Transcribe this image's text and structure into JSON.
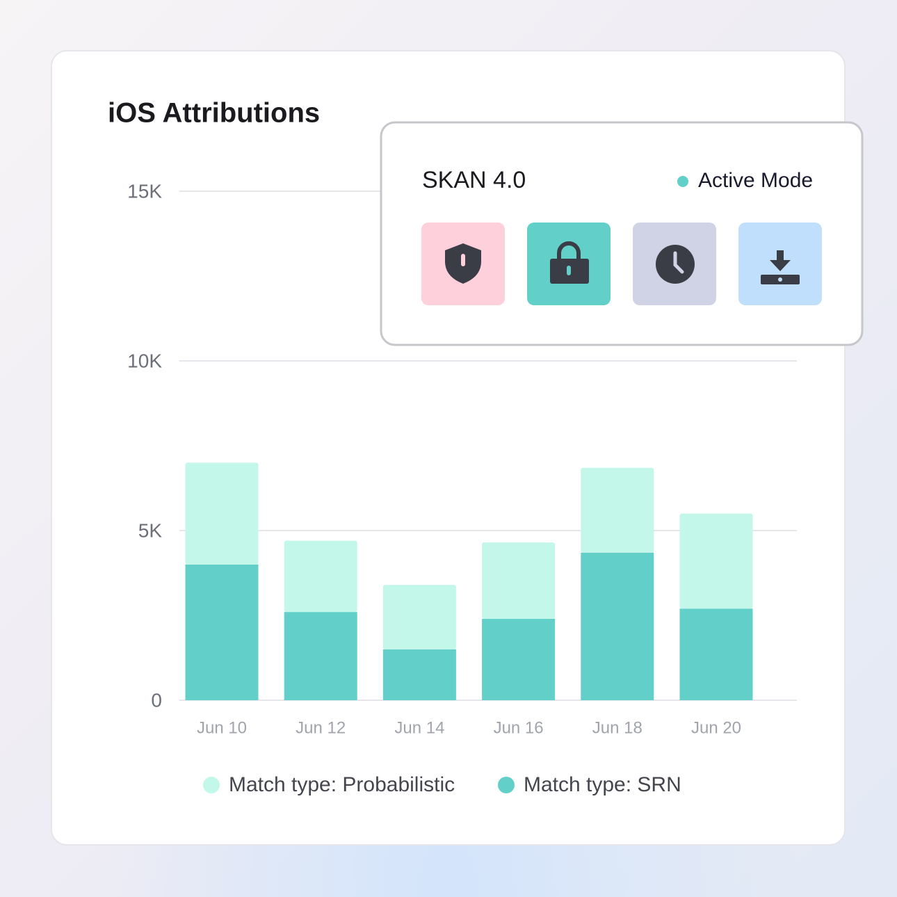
{
  "chart_data": {
    "type": "stacked_bar",
    "title": "iOS Attributions",
    "categories": [
      "Jun 10",
      "Jun 12",
      "Jun 14",
      "Jun 16",
      "Jun 18",
      "Jun 20"
    ],
    "series": [
      {
        "name": "Match type: Probabilistic",
        "color": "#c3f7ea",
        "values": [
          3000,
          2100,
          1900,
          2250,
          2500,
          2800
        ]
      },
      {
        "name": "Match type: SRN",
        "color": "#62d0c8",
        "values": [
          4000,
          2600,
          1500,
          2400,
          4350,
          2700
        ]
      }
    ],
    "ylim": [
      0,
      15000
    ],
    "yticks": [
      0,
      {
        "value": 5000,
        "label": "5K"
      },
      {
        "value": 10000,
        "label": "10K"
      },
      {
        "value": 15000,
        "label": "15K"
      }
    ],
    "grid": true
  },
  "skan_panel": {
    "title": "SKAN 4.0",
    "status": "Active Mode"
  }
}
